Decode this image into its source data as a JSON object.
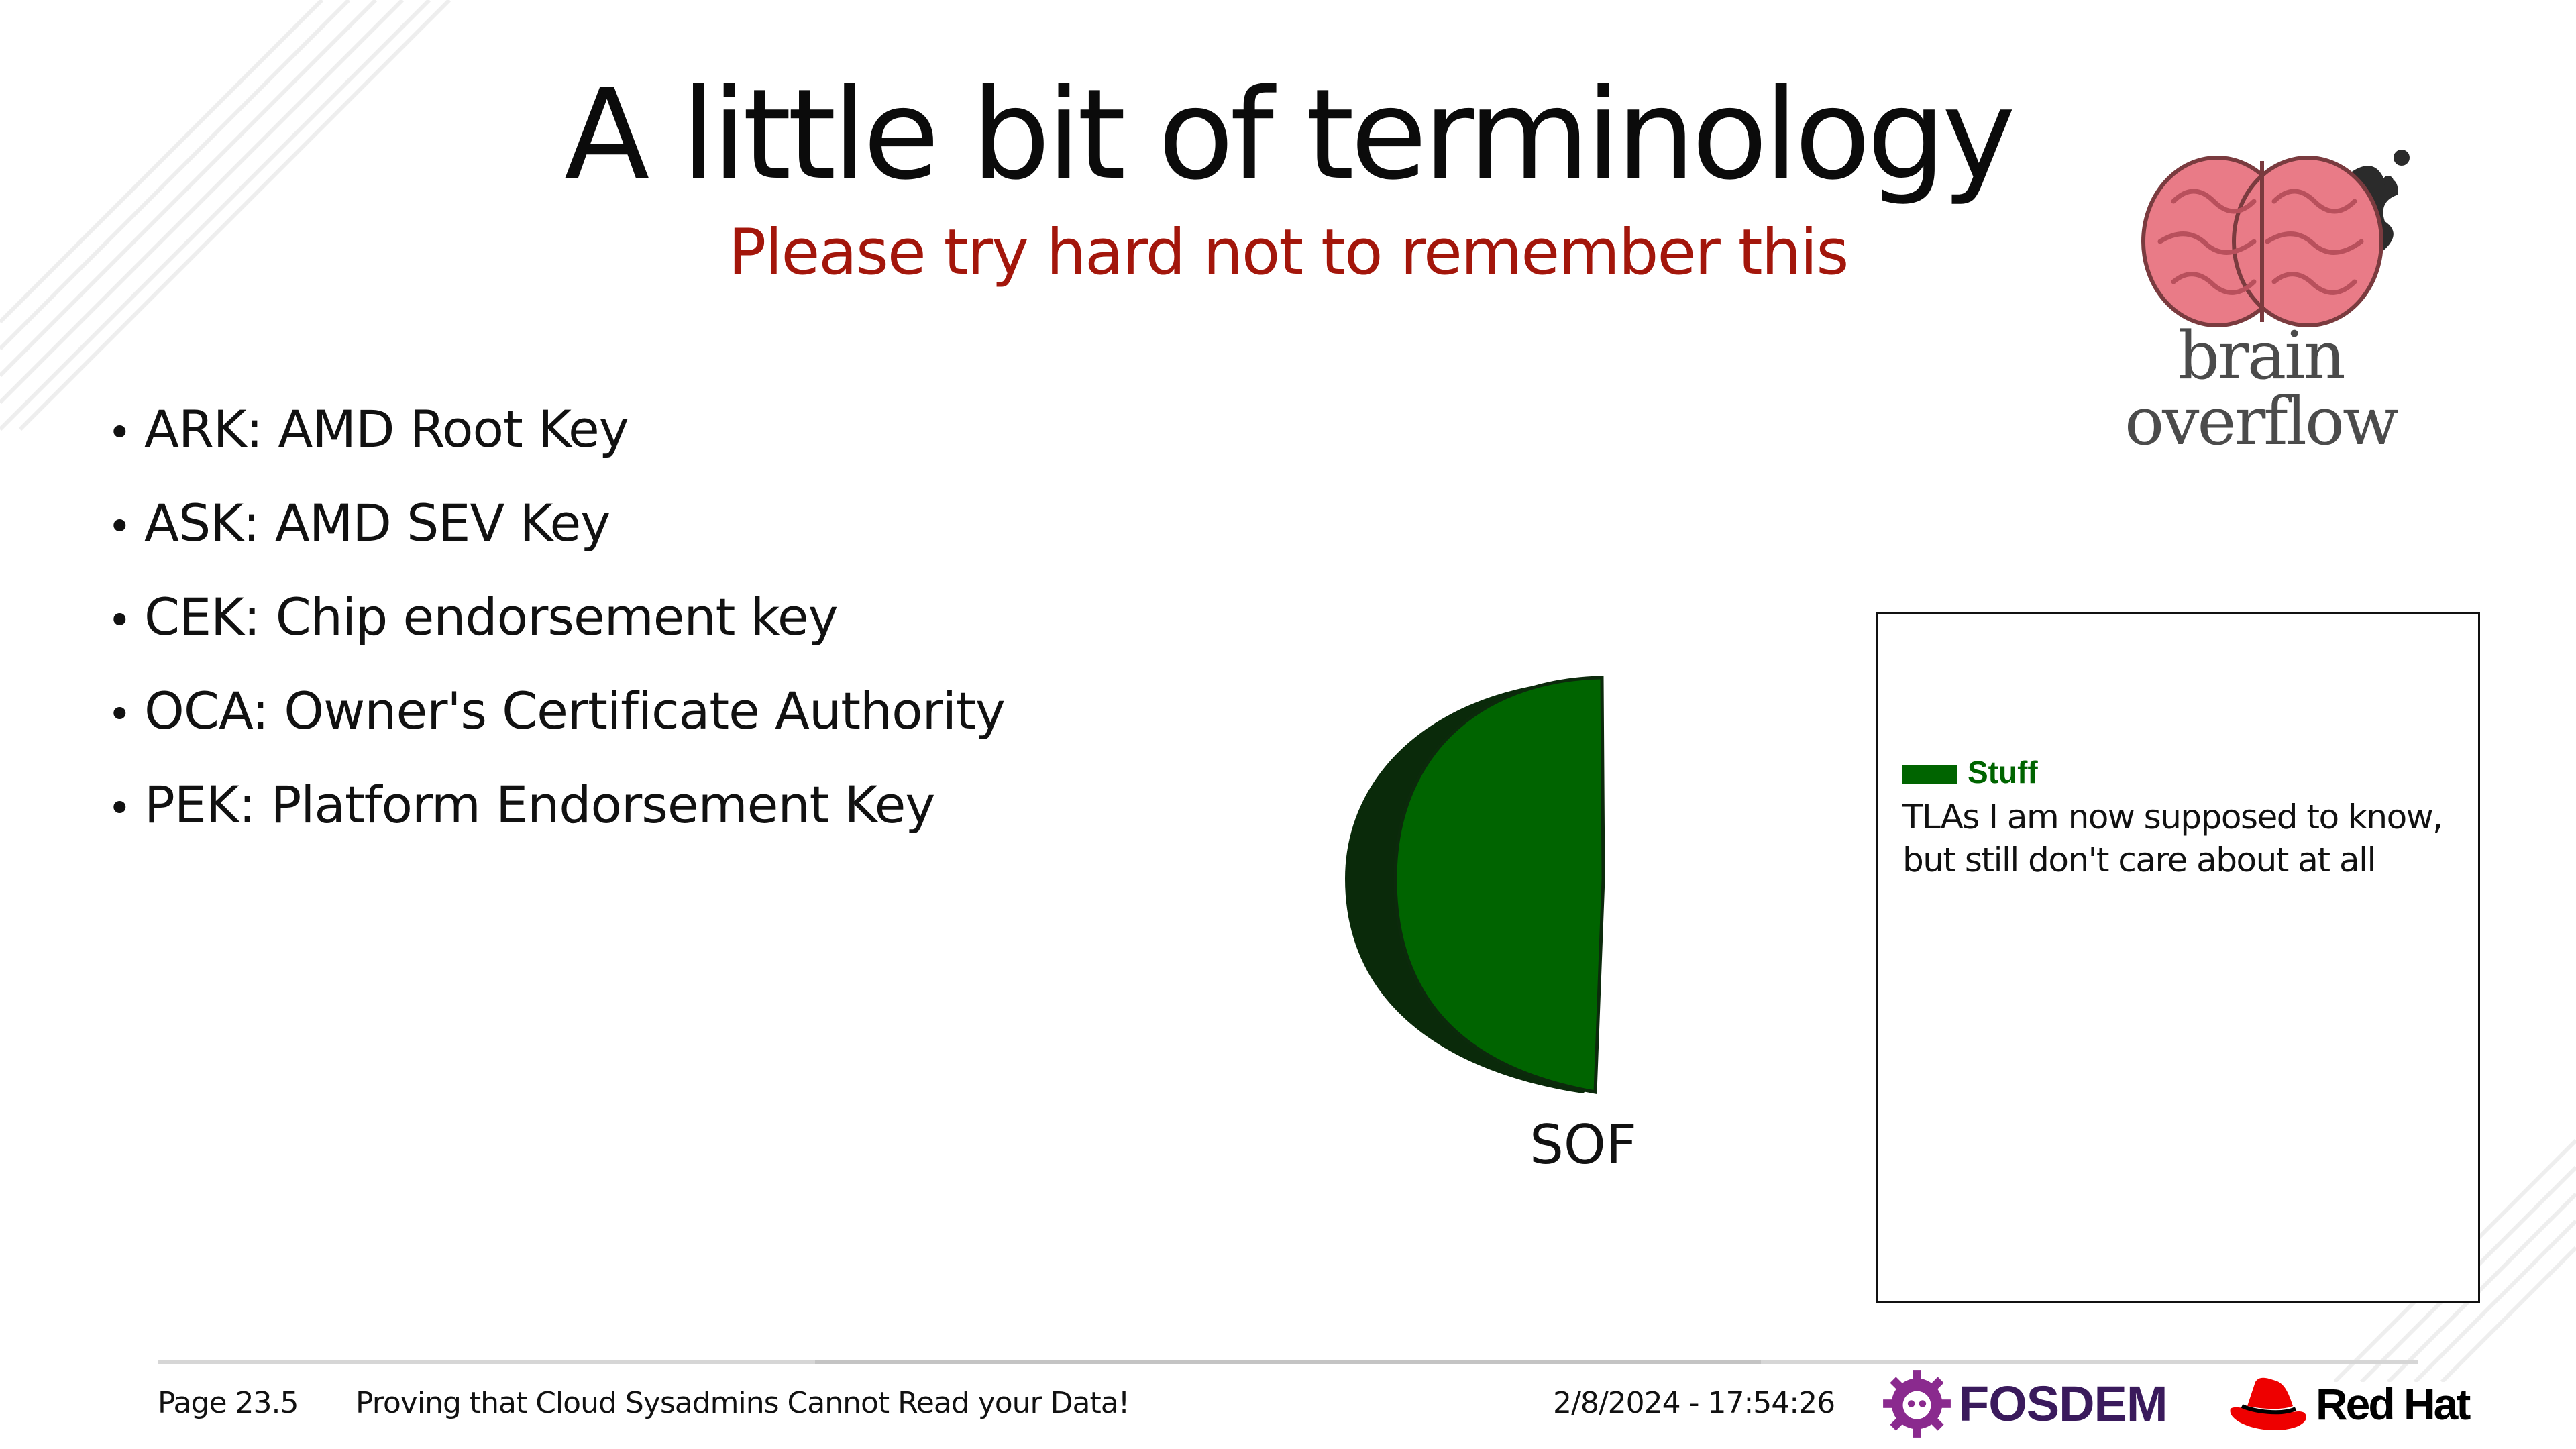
{
  "slide": {
    "title": "A little bit of terminology",
    "subtitle": "Please try hard not to remember this",
    "logo_text": "brain overflow",
    "bullets": [
      "ARK: AMD Root Key",
      "ASK: AMD SEV Key",
      "CEK: Chip endorsement key",
      "OCA: Owner's Certificate Authority",
      "PEK: Platform Endorsement Key"
    ]
  },
  "chart_data": {
    "type": "pie",
    "categories": [
      "SOF"
    ],
    "values": [
      1
    ],
    "series": [
      {
        "name": "Stuff",
        "values": [
          1
        ]
      }
    ],
    "legend": {
      "title": "Stuff",
      "description": "TLAs I am now supposed to know, but still don't care about at all",
      "placement": "right"
    },
    "colors": {
      "slice": "#006400",
      "side": "#0a2a0a"
    }
  },
  "footer": {
    "page": "Page 23.5",
    "talk_title": "Proving that Cloud Sysadmins Cannot Read your Data!",
    "datetime": "2/8/2024 - 17:54:26",
    "fosdem_label": "FOSDEM",
    "redhat_label": "Red Hat"
  },
  "colors": {
    "subtitle": "#a3160b",
    "legend_accent": "#006400",
    "fosdem": "#8a2a8e",
    "redhat": "#ee0000"
  }
}
